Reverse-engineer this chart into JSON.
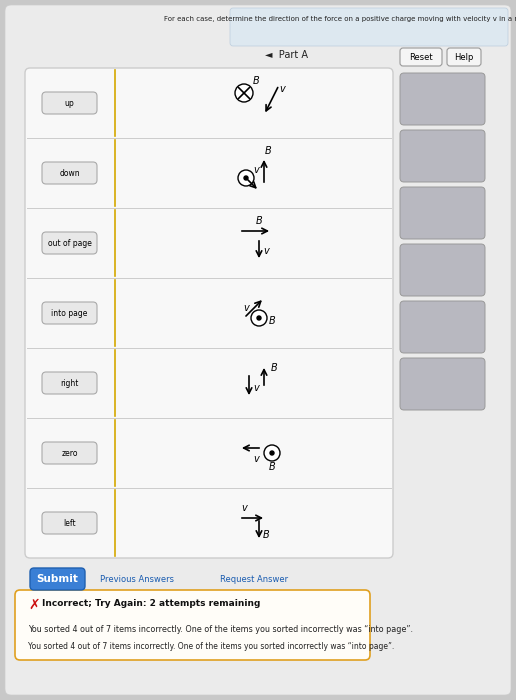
{
  "title": "For each case, determine the direction of the force on a positive charge moving with velocity v in a magnetic field B.",
  "part_label": "Part A",
  "bg_outer": "#c8c8c8",
  "bg_page": "#e8e8ea",
  "bg_panel": "#f0f0f0",
  "bg_white": "#ffffff",
  "btn_blue_color": "#3a7fd5",
  "error_orange": "#e8a030",
  "cases": [
    {
      "label": "up"
    },
    {
      "label": "down"
    },
    {
      "label": "out of page"
    },
    {
      "label": "into page"
    },
    {
      "label": "right"
    },
    {
      "label": "zero"
    },
    {
      "label": "left"
    }
  ],
  "submit_text": "Submit",
  "prev_answers_text": "Previous Answers",
  "req_answer_text": "Request Answer",
  "incorrect_title": "Incorrect; Try Again: 2 attempts remaining",
  "incorrect_detail": "You sorted 4 out of 7 items incorrectly. One of the items you sorted incorrectly was “into page”.",
  "reset_text": "Reset",
  "help_text": "Help"
}
